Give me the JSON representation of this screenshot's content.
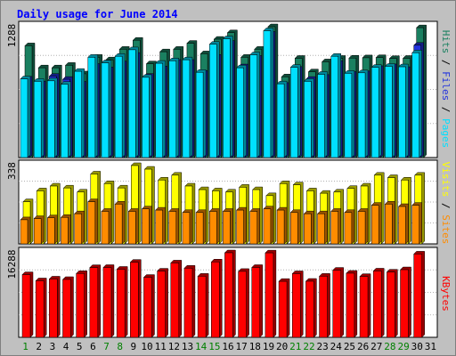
{
  "title": "Daily usage for June 2014",
  "colors": {
    "background": "#c0c0c0",
    "plot_background": "#ffffff",
    "hits": "#1a8060",
    "files": "#2233dd",
    "pages": "#00e0ff",
    "visits": "#ffff00",
    "sites": "#ff8c00",
    "kbytes": "#ff0000",
    "title": "#0000ff",
    "weekend_day": "#008000"
  },
  "chart_data": [
    {
      "type": "bar",
      "name": "hits-files-pages",
      "ymax_label": "1288",
      "legend": [
        {
          "label": "Pages",
          "color": "#00e0ff"
        },
        {
          "label": "Files",
          "color": "#2233dd"
        },
        {
          "label": "Hits",
          "color": "#1a8060"
        }
      ],
      "categories": [
        "1",
        "2",
        "3",
        "4",
        "5",
        "6",
        "7",
        "8",
        "9",
        "10",
        "11",
        "12",
        "13",
        "14",
        "15",
        "16",
        "17",
        "18",
        "19",
        "20",
        "21",
        "22",
        "23",
        "24",
        "25",
        "26",
        "27",
        "28",
        "29",
        "30",
        "31"
      ],
      "series": [
        {
          "name": "Hits",
          "values": [
            1115,
            895,
            895,
            920,
            835,
            1000,
            975,
            1080,
            1170,
            935,
            1055,
            1080,
            1140,
            1035,
            1180,
            1245,
            1000,
            1080,
            1305,
            805,
            990,
            855,
            955,
            990,
            992,
            995,
            997,
            988,
            990,
            1295,
            0
          ]
        },
        {
          "name": "Files",
          "values": [
            782,
            735,
            810,
            780,
            732,
            910,
            875,
            935,
            1020,
            810,
            885,
            950,
            950,
            840,
            1000,
            1140,
            905,
            990,
            1230,
            720,
            880,
            780,
            800,
            940,
            830,
            836,
            888,
            906,
            878,
            1120,
            0
          ]
        },
        {
          "name": "Pages",
          "values": [
            785,
            760,
            765,
            730,
            860,
            1000,
            945,
            1010,
            1075,
            800,
            940,
            965,
            975,
            850,
            1130,
            1185,
            895,
            1025,
            1265,
            735,
            900,
            760,
            830,
            1010,
            840,
            845,
            900,
            910,
            905,
            1045,
            0
          ]
        }
      ]
    },
    {
      "type": "bar",
      "name": "visits-sites",
      "ymax_label": "338",
      "legend": [
        {
          "label": "Sites",
          "color": "#ff8c00"
        },
        {
          "label": "Visits",
          "color": "#ffff00"
        }
      ],
      "categories": [
        "1",
        "2",
        "3",
        "4",
        "5",
        "6",
        "7",
        "8",
        "9",
        "10",
        "11",
        "12",
        "13",
        "14",
        "15",
        "16",
        "17",
        "18",
        "19",
        "20",
        "21",
        "22",
        "23",
        "24",
        "25",
        "26",
        "27",
        "28",
        "29",
        "30",
        "31"
      ],
      "series": [
        {
          "name": "Visits",
          "values": [
            175,
            220,
            240,
            232,
            215,
            290,
            250,
            232,
            325,
            310,
            265,
            285,
            240,
            225,
            220,
            215,
            235,
            225,
            200,
            250,
            245,
            220,
            210,
            215,
            230,
            240,
            285,
            275,
            265,
            285,
            0
          ]
        },
        {
          "name": "Sites",
          "values": [
            100,
            105,
            108,
            110,
            125,
            175,
            135,
            165,
            135,
            145,
            140,
            135,
            130,
            130,
            135,
            135,
            140,
            135,
            145,
            140,
            130,
            125,
            125,
            135,
            130,
            135,
            160,
            165,
            155,
            160,
            0
          ]
        }
      ]
    },
    {
      "type": "bar",
      "name": "kbytes",
      "ymax_label": "16288",
      "legend": [
        {
          "label": "KBytes",
          "color": "#ff0000"
        }
      ],
      "categories": [
        "1",
        "2",
        "3",
        "4",
        "5",
        "6",
        "7",
        "8",
        "9",
        "10",
        "11",
        "12",
        "13",
        "14",
        "15",
        "16",
        "17",
        "18",
        "19",
        "20",
        "21",
        "22",
        "23",
        "24",
        "25",
        "26",
        "27",
        "28",
        "29",
        "30",
        "31"
      ],
      "series": [
        {
          "name": "KBytes",
          "values": [
            11950,
            10780,
            11120,
            11030,
            12170,
            13300,
            13320,
            12980,
            14310,
            11440,
            12630,
            14180,
            13180,
            11650,
            14380,
            16120,
            12570,
            13320,
            16100,
            10670,
            12140,
            10690,
            11650,
            12800,
            12220,
            11600,
            12650,
            12440,
            12890,
            15880,
            0
          ]
        }
      ]
    }
  ],
  "x_labels": [
    {
      "text": "1",
      "weekend": true
    },
    {
      "text": "2",
      "weekend": false
    },
    {
      "text": "3",
      "weekend": false
    },
    {
      "text": "4",
      "weekend": false
    },
    {
      "text": "5",
      "weekend": false
    },
    {
      "text": "6",
      "weekend": false
    },
    {
      "text": "7",
      "weekend": true
    },
    {
      "text": "8",
      "weekend": true
    },
    {
      "text": "9",
      "weekend": false
    },
    {
      "text": "10",
      "weekend": false
    },
    {
      "text": "11",
      "weekend": false
    },
    {
      "text": "12",
      "weekend": false
    },
    {
      "text": "13",
      "weekend": false
    },
    {
      "text": "14",
      "weekend": true
    },
    {
      "text": "15",
      "weekend": true
    },
    {
      "text": "16",
      "weekend": false
    },
    {
      "text": "17",
      "weekend": false
    },
    {
      "text": "18",
      "weekend": false
    },
    {
      "text": "19",
      "weekend": false
    },
    {
      "text": "20",
      "weekend": false
    },
    {
      "text": "21",
      "weekend": true
    },
    {
      "text": "22",
      "weekend": true
    },
    {
      "text": "23",
      "weekend": false
    },
    {
      "text": "24",
      "weekend": false
    },
    {
      "text": "25",
      "weekend": false
    },
    {
      "text": "26",
      "weekend": false
    },
    {
      "text": "27",
      "weekend": false
    },
    {
      "text": "28",
      "weekend": true
    },
    {
      "text": "29",
      "weekend": true
    },
    {
      "text": "30",
      "weekend": false
    },
    {
      "text": "31",
      "weekend": false
    }
  ]
}
